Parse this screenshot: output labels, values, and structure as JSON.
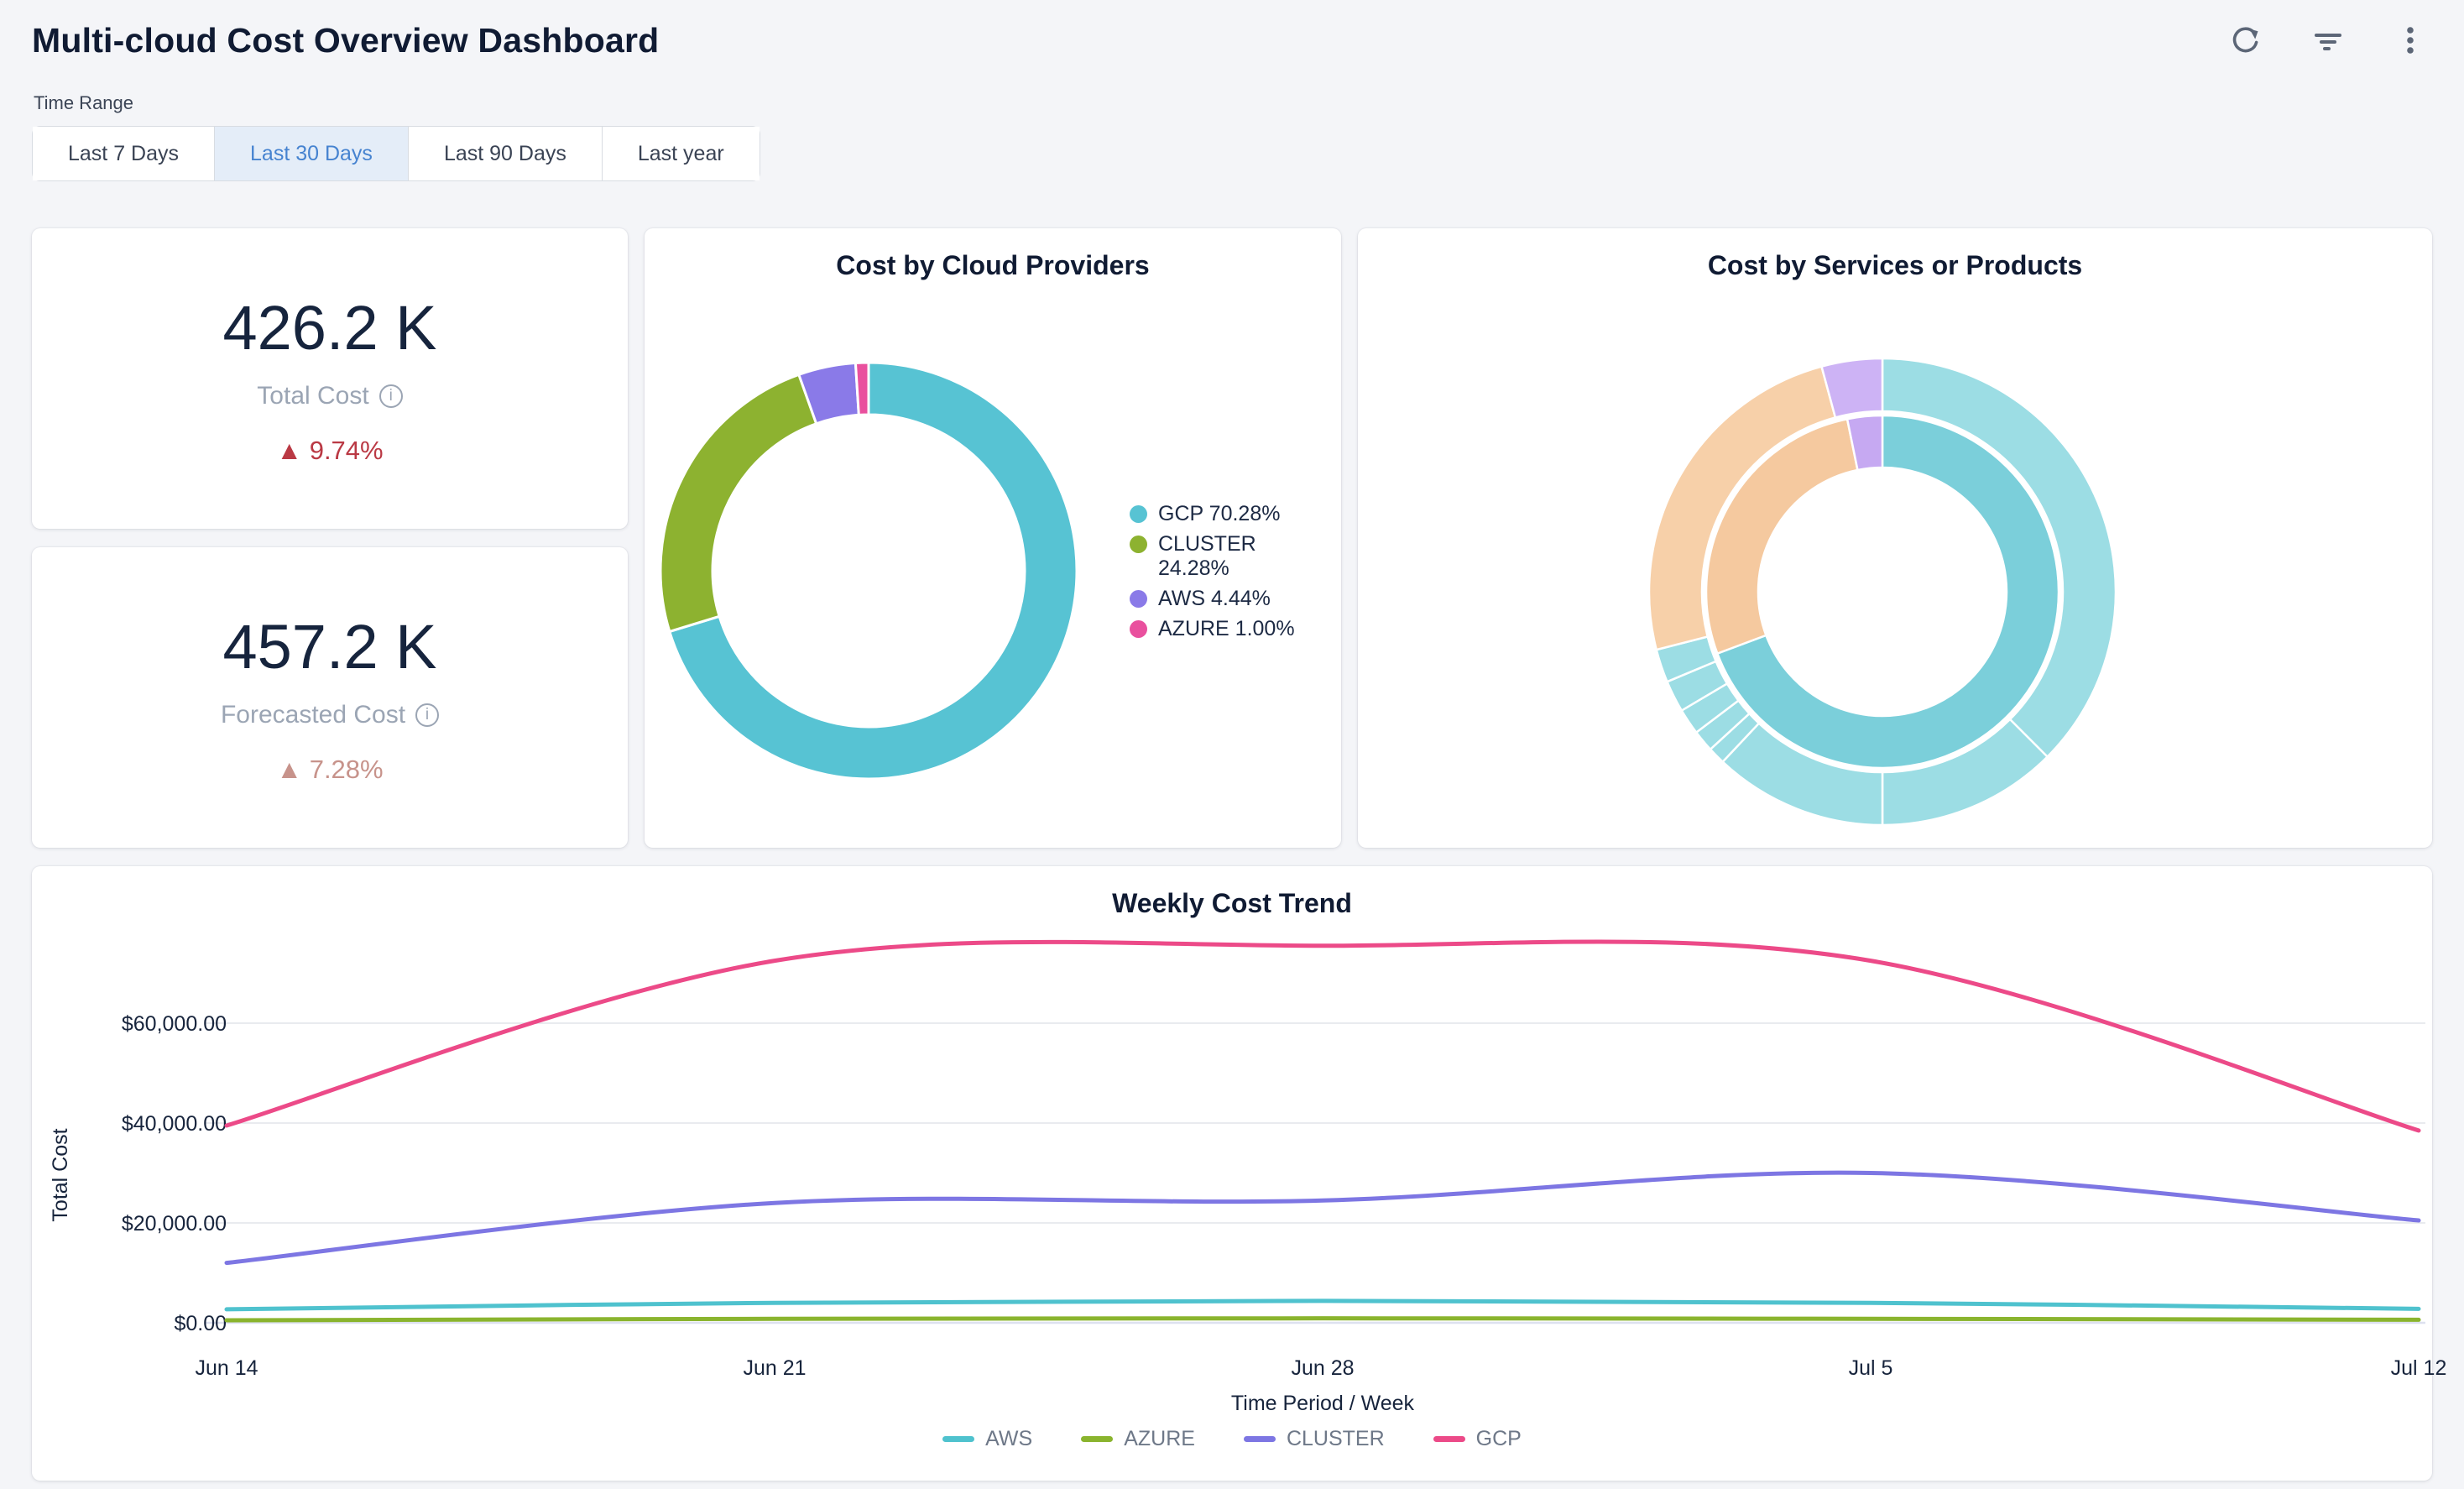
{
  "header": {
    "title": "Multi-cloud Cost Overview Dashboard",
    "actions": [
      {
        "name": "refresh",
        "icon": "refresh-icon"
      },
      {
        "name": "filter",
        "icon": "filter-icon"
      },
      {
        "name": "more-options",
        "icon": "kebab-menu-icon"
      }
    ]
  },
  "time_range": {
    "label": "Time Range",
    "selected": "Last 30 Days",
    "options": [
      "Last 7 Days",
      "Last 30 Days",
      "Last 90 Days",
      "Last year"
    ],
    "selected_bg": "#e4edf8",
    "selected_text": "#4683d0"
  },
  "kpis": [
    {
      "value": "426.2 K",
      "label": "Total Cost",
      "delta_icon": "▲",
      "delta_text": "9.74%",
      "delta_color": "#ba3944"
    },
    {
      "value": "457.2 K",
      "label": "Forecasted Cost",
      "delta_icon": "▲",
      "delta_text": "7.28%",
      "delta_color": "#c7938b"
    }
  ],
  "chart_data": [
    {
      "id": "cost-by-cloud-providers",
      "type": "pie",
      "title": "Cost by Cloud Providers",
      "labels": [
        "GCP",
        "CLUSTER",
        "AWS",
        "AZURE"
      ],
      "values": [
        70.28,
        24.28,
        4.44,
        1.0
      ],
      "colors": [
        "#57c3d3",
        "#8db230",
        "#8a7ae8",
        "#e9509e"
      ],
      "legend_labels": [
        "GCP 70.28%",
        "CLUSTER 24.28%",
        "AWS 4.44%",
        "AZURE 1.00%"
      ],
      "legend_position": "right",
      "donut_hole_ratio": 0.75,
      "start_angle_deg": 0
    },
    {
      "id": "cost-by-services-or-products",
      "type": "pie",
      "variant": "sunburst",
      "title": "Cost by Services or Products",
      "rings": [
        {
          "level": "inner",
          "segments": [
            {
              "value": 69.3,
              "color": "#7bcfda"
            },
            {
              "value": 27.5,
              "color": "#f5c99f"
            },
            {
              "value": 3.2,
              "color": "#c6a9f2"
            }
          ]
        },
        {
          "level": "outer",
          "segments": [
            {
              "value": 37.5,
              "color": "#9cdde4"
            },
            {
              "value": 12.5,
              "color": "#9cdde4"
            },
            {
              "value": 12.0,
              "color": "#9cdde4"
            },
            {
              "value": 1.2,
              "color": "#9cdde4"
            },
            {
              "value": 1.5,
              "color": "#9cdde4"
            },
            {
              "value": 1.8,
              "color": "#9cdde4"
            },
            {
              "value": 2.2,
              "color": "#9cdde4"
            },
            {
              "value": 2.3,
              "color": "#9cdde4"
            },
            {
              "value": 24.8,
              "color": "#f7d0a9"
            },
            {
              "value": 4.2,
              "color": "#cdb3f5"
            }
          ]
        }
      ]
    },
    {
      "id": "weekly-cost-trend",
      "type": "line",
      "title": "Weekly Cost Trend",
      "x": [
        "Jun 14",
        "Jun 21",
        "Jun 28",
        "Jul 5",
        "Jul 12"
      ],
      "series": [
        {
          "name": "AWS",
          "color": "#4fc2ce",
          "values": [
            2700,
            4000,
            4400,
            4000,
            2800
          ]
        },
        {
          "name": "AZURE",
          "color": "#8ab42e",
          "values": [
            500,
            800,
            900,
            800,
            600
          ]
        },
        {
          "name": "CLUSTER",
          "color": "#7d76e3",
          "values": [
            12000,
            24000,
            24500,
            30000,
            20500
          ]
        },
        {
          "name": "GCP",
          "color": "#ec4a88",
          "values": [
            39500,
            72500,
            75500,
            72500,
            38500
          ]
        }
      ],
      "xlabel": "Time Period / Week",
      "ylabel": "Total Cost",
      "yticks": [
        0,
        20000,
        40000,
        60000
      ],
      "ytick_labels": [
        "$0.00",
        "$20,000.00",
        "$40,000.00",
        "$60,000.00"
      ],
      "ymax": 82000,
      "grid": true,
      "legend_position": "bottom"
    }
  ]
}
